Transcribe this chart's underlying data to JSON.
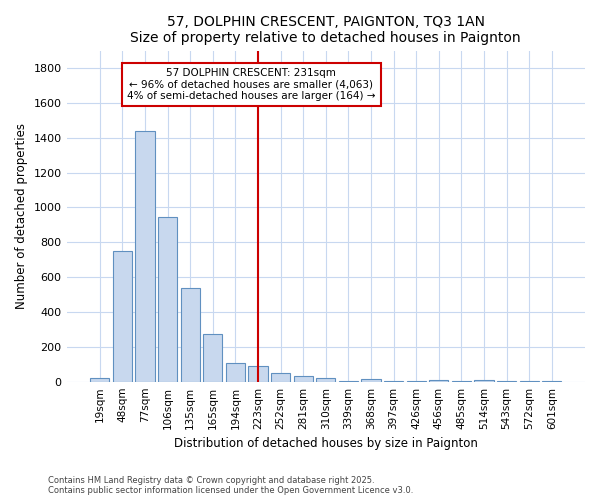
{
  "title": "57, DOLPHIN CRESCENT, PAIGNTON, TQ3 1AN",
  "subtitle": "Size of property relative to detached houses in Paignton",
  "xlabel": "Distribution of detached houses by size in Paignton",
  "ylabel": "Number of detached properties",
  "categories": [
    "19sqm",
    "48sqm",
    "77sqm",
    "106sqm",
    "135sqm",
    "165sqm",
    "194sqm",
    "223sqm",
    "252sqm",
    "281sqm",
    "310sqm",
    "339sqm",
    "368sqm",
    "397sqm",
    "426sqm",
    "456sqm",
    "485sqm",
    "514sqm",
    "543sqm",
    "572sqm",
    "601sqm"
  ],
  "values": [
    20,
    750,
    1440,
    945,
    535,
    275,
    110,
    90,
    50,
    30,
    20,
    5,
    15,
    5,
    5,
    12,
    5,
    10,
    5,
    5,
    5
  ],
  "bar_color": "#c8d8ee",
  "bar_edge_color": "#6090c0",
  "vline_x_index": 7,
  "vline_color": "#cc0000",
  "annotation_title": "57 DOLPHIN CRESCENT: 231sqm",
  "annotation_line1": "← 96% of detached houses are smaller (4,063)",
  "annotation_line2": "4% of semi-detached houses are larger (164) →",
  "annotation_box_color": "white",
  "annotation_box_edge_color": "#cc0000",
  "ylim": [
    0,
    1900
  ],
  "yticks": [
    0,
    200,
    400,
    600,
    800,
    1000,
    1200,
    1400,
    1600,
    1800
  ],
  "background_color": "#ffffff",
  "grid_color": "#c8d8f0",
  "footer_line1": "Contains HM Land Registry data © Crown copyright and database right 2025.",
  "footer_line2": "Contains public sector information licensed under the Open Government Licence v3.0."
}
